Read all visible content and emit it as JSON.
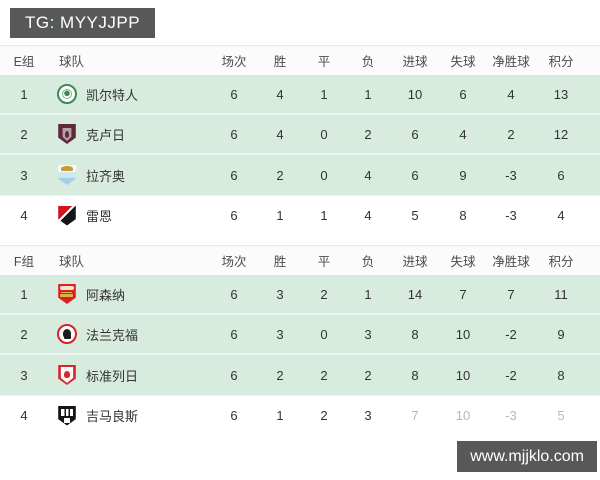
{
  "top_badge": {
    "text": "TG: MYYJJPP",
    "bg": "#57585a",
    "color": "#ffffff"
  },
  "watermark": {
    "text": "www.mjjklo.com",
    "bg": "#57585a",
    "color": "#ffffff"
  },
  "colors": {
    "row_highlight": "#d7ebde",
    "badge_gray": "#57585a",
    "header_text": "#4c4c4c",
    "body_text": "#333333"
  },
  "columns": {
    "team": "球队",
    "played": "场次",
    "win": "胜",
    "draw": "平",
    "loss": "负",
    "goals_for": "进球",
    "goals_against": "失球",
    "goal_diff": "净胜球",
    "points": "积分"
  },
  "groups": [
    {
      "label": "E组",
      "teams": [
        {
          "rank": "1",
          "name": "凯尔特人",
          "icon": "celtic-crest",
          "played": "6",
          "win": "4",
          "draw": "1",
          "loss": "1",
          "gf": "10",
          "ga": "6",
          "gd": "4",
          "pts": "13"
        },
        {
          "rank": "2",
          "name": "克卢日",
          "icon": "cluj-crest",
          "played": "6",
          "win": "4",
          "draw": "0",
          "loss": "2",
          "gf": "6",
          "ga": "4",
          "gd": "2",
          "pts": "12"
        },
        {
          "rank": "3",
          "name": "拉齐奥",
          "icon": "lazio-crest",
          "played": "6",
          "win": "2",
          "draw": "0",
          "loss": "4",
          "gf": "6",
          "ga": "9",
          "gd": "-3",
          "pts": "6"
        },
        {
          "rank": "4",
          "name": "雷恩",
          "icon": "rennes-crest",
          "played": "6",
          "win": "1",
          "draw": "1",
          "loss": "4",
          "gf": "5",
          "ga": "8",
          "gd": "-3",
          "pts": "4"
        }
      ]
    },
    {
      "label": "F组",
      "teams": [
        {
          "rank": "1",
          "name": "阿森纳",
          "icon": "arsenal-crest",
          "played": "6",
          "win": "3",
          "draw": "2",
          "loss": "1",
          "gf": "14",
          "ga": "7",
          "gd": "7",
          "pts": "11"
        },
        {
          "rank": "2",
          "name": "法兰克福",
          "icon": "frankfurt-crest",
          "played": "6",
          "win": "3",
          "draw": "0",
          "loss": "3",
          "gf": "8",
          "ga": "10",
          "gd": "-2",
          "pts": "9"
        },
        {
          "rank": "3",
          "name": "标准列日",
          "icon": "standard-crest",
          "played": "6",
          "win": "2",
          "draw": "2",
          "loss": "2",
          "gf": "8",
          "ga": "10",
          "gd": "-2",
          "pts": "8"
        },
        {
          "rank": "4",
          "name": "吉马良斯",
          "icon": "guimaraes-crest",
          "played": "6",
          "win": "1",
          "draw": "2",
          "loss": "3",
          "gf": "7",
          "ga": "10",
          "gd": "-3",
          "pts": "5"
        }
      ]
    }
  ]
}
